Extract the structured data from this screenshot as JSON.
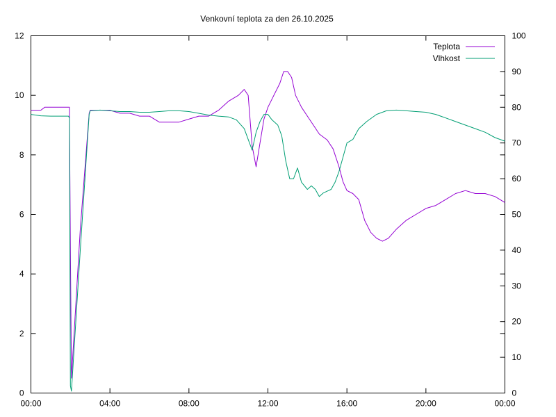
{
  "chart_data": {
    "type": "line",
    "title": "Venkovní teplota za den 26.10.2025",
    "xlabel": "",
    "ylabel": "",
    "y2label": "",
    "x_tick_labels": [
      "00:00",
      "04:00",
      "08:00",
      "12:00",
      "16:00",
      "20:00",
      "00:00"
    ],
    "x_range_hours": [
      0,
      24
    ],
    "ylim": [
      0,
      12
    ],
    "y_ticks": [
      0,
      2,
      4,
      6,
      8,
      10,
      12
    ],
    "y2lim": [
      0,
      100
    ],
    "y2_ticks": [
      0,
      10,
      20,
      30,
      40,
      50,
      60,
      70,
      80,
      90,
      100
    ],
    "grid": false,
    "legend_position": "top-right",
    "series": [
      {
        "name": "Teplota",
        "axis": "left",
        "color": "#9400d3",
        "points": [
          [
            0.0,
            9.5
          ],
          [
            0.5,
            9.5
          ],
          [
            0.7,
            9.6
          ],
          [
            1.0,
            9.6
          ],
          [
            1.5,
            9.6
          ],
          [
            1.95,
            9.6
          ],
          [
            2.0,
            4.8
          ],
          [
            2.05,
            0.5
          ],
          [
            2.5,
            5.5
          ],
          [
            2.95,
            9.4
          ],
          [
            3.0,
            9.5
          ],
          [
            3.5,
            9.5
          ],
          [
            4.0,
            9.5
          ],
          [
            4.5,
            9.4
          ],
          [
            5.0,
            9.4
          ],
          [
            5.5,
            9.3
          ],
          [
            6.0,
            9.3
          ],
          [
            6.5,
            9.1
          ],
          [
            7.0,
            9.1
          ],
          [
            7.5,
            9.1
          ],
          [
            8.0,
            9.2
          ],
          [
            8.5,
            9.3
          ],
          [
            9.0,
            9.3
          ],
          [
            9.5,
            9.5
          ],
          [
            10.0,
            9.8
          ],
          [
            10.5,
            10.0
          ],
          [
            10.8,
            10.2
          ],
          [
            11.0,
            10.0
          ],
          [
            11.2,
            8.3
          ],
          [
            11.4,
            7.6
          ],
          [
            11.6,
            8.4
          ],
          [
            11.8,
            9.2
          ],
          [
            12.0,
            9.6
          ],
          [
            12.3,
            10.0
          ],
          [
            12.6,
            10.4
          ],
          [
            12.8,
            10.8
          ],
          [
            13.0,
            10.8
          ],
          [
            13.2,
            10.6
          ],
          [
            13.4,
            10.0
          ],
          [
            13.7,
            9.6
          ],
          [
            14.0,
            9.3
          ],
          [
            14.3,
            9.0
          ],
          [
            14.6,
            8.7
          ],
          [
            15.0,
            8.5
          ],
          [
            15.3,
            8.2
          ],
          [
            15.6,
            7.6
          ],
          [
            15.8,
            7.1
          ],
          [
            16.0,
            6.8
          ],
          [
            16.3,
            6.7
          ],
          [
            16.6,
            6.5
          ],
          [
            16.9,
            5.8
          ],
          [
            17.2,
            5.4
          ],
          [
            17.5,
            5.2
          ],
          [
            17.8,
            5.1
          ],
          [
            18.1,
            5.2
          ],
          [
            18.5,
            5.5
          ],
          [
            19.0,
            5.8
          ],
          [
            19.5,
            6.0
          ],
          [
            20.0,
            6.2
          ],
          [
            20.5,
            6.3
          ],
          [
            21.0,
            6.5
          ],
          [
            21.5,
            6.7
          ],
          [
            22.0,
            6.8
          ],
          [
            22.5,
            6.7
          ],
          [
            23.0,
            6.7
          ],
          [
            23.5,
            6.6
          ],
          [
            24.0,
            6.4
          ]
        ]
      },
      {
        "name": "Vlhkost",
        "axis": "right",
        "color": "#009e73",
        "points": [
          [
            0.0,
            78
          ],
          [
            0.5,
            77.6
          ],
          [
            1.0,
            77.5
          ],
          [
            1.5,
            77.5
          ],
          [
            1.9,
            77.5
          ],
          [
            1.95,
            77
          ],
          [
            2.0,
            2
          ],
          [
            2.05,
            0.5
          ],
          [
            2.5,
            40
          ],
          [
            2.95,
            78
          ],
          [
            3.0,
            79
          ],
          [
            3.5,
            79.2
          ],
          [
            4.0,
            79
          ],
          [
            4.5,
            78.8
          ],
          [
            5.0,
            78.8
          ],
          [
            5.5,
            78.6
          ],
          [
            6.0,
            78.6
          ],
          [
            6.5,
            78.8
          ],
          [
            7.0,
            79
          ],
          [
            7.5,
            79
          ],
          [
            8.0,
            78.8
          ],
          [
            8.5,
            78.3
          ],
          [
            9.0,
            77.8
          ],
          [
            9.5,
            77.5
          ],
          [
            10.0,
            77.3
          ],
          [
            10.4,
            76.5
          ],
          [
            10.8,
            74
          ],
          [
            11.0,
            71
          ],
          [
            11.2,
            68
          ],
          [
            11.4,
            73
          ],
          [
            11.6,
            76
          ],
          [
            11.8,
            78
          ],
          [
            12.0,
            78
          ],
          [
            12.2,
            76.5
          ],
          [
            12.5,
            75
          ],
          [
            12.7,
            72
          ],
          [
            12.9,
            65
          ],
          [
            13.1,
            60
          ],
          [
            13.3,
            60
          ],
          [
            13.5,
            63
          ],
          [
            13.7,
            59
          ],
          [
            14.0,
            57
          ],
          [
            14.2,
            58
          ],
          [
            14.4,
            57
          ],
          [
            14.6,
            55
          ],
          [
            14.8,
            56
          ],
          [
            15.0,
            56.5
          ],
          [
            15.2,
            57
          ],
          [
            15.4,
            59
          ],
          [
            15.6,
            62
          ],
          [
            15.8,
            66
          ],
          [
            16.0,
            70
          ],
          [
            16.3,
            71
          ],
          [
            16.6,
            74
          ],
          [
            17.0,
            76
          ],
          [
            17.5,
            78
          ],
          [
            18.0,
            79
          ],
          [
            18.5,
            79.2
          ],
          [
            19.0,
            79
          ],
          [
            19.5,
            78.8
          ],
          [
            20.0,
            78.6
          ],
          [
            20.5,
            78
          ],
          [
            21.0,
            77
          ],
          [
            21.5,
            76
          ],
          [
            22.0,
            75
          ],
          [
            22.5,
            74
          ],
          [
            23.0,
            73
          ],
          [
            23.5,
            71.5
          ],
          [
            24.0,
            70.5
          ]
        ]
      }
    ]
  }
}
